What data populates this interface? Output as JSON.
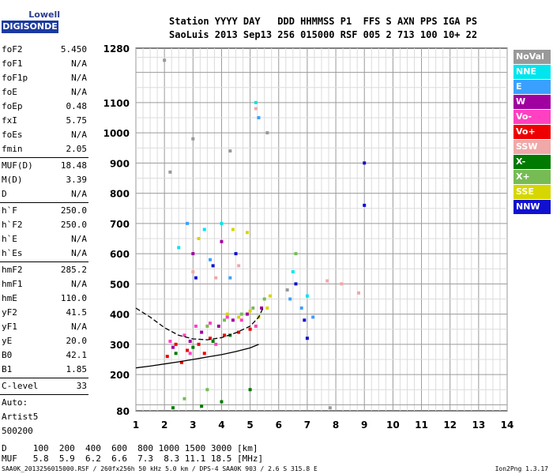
{
  "logo": {
    "top": "Lowell",
    "box": "DIGISONDE"
  },
  "header": {
    "line1": "Station YYYY DAY   DDD HHMMSS P1  FFS S AXN PPS IGA PS",
    "line2": "SaoLuis 2013 Sep13 256 015000 RSF 005 2 713 100 10+ 22"
  },
  "params": [
    {
      "k": "foF2",
      "v": "5.450"
    },
    {
      "k": "foF1",
      "v": "N/A"
    },
    {
      "k": "foF1p",
      "v": "N/A"
    },
    {
      "k": "foE",
      "v": "N/A"
    },
    {
      "k": "foEp",
      "v": "0.48"
    },
    {
      "k": "fxI",
      "v": "5.75"
    },
    {
      "k": "foEs",
      "v": "N/A"
    },
    {
      "k": "fmin",
      "v": "2.05"
    },
    {
      "sep": true
    },
    {
      "k": "MUF(D)",
      "v": "18.48"
    },
    {
      "k": "M(D)",
      "v": "3.39"
    },
    {
      "k": "D",
      "v": "N/A"
    },
    {
      "sep": true
    },
    {
      "k": "h`F",
      "v": "250.0"
    },
    {
      "k": "h`F2",
      "v": "250.0"
    },
    {
      "k": "h`E",
      "v": "N/A"
    },
    {
      "k": "h`Es",
      "v": "N/A"
    },
    {
      "sep": true
    },
    {
      "k": "hmF2",
      "v": "285.2"
    },
    {
      "k": "hmF1",
      "v": "N/A"
    },
    {
      "k": "hmE",
      "v": "110.0"
    },
    {
      "k": "yF2",
      "v": "41.5"
    },
    {
      "k": "yF1",
      "v": "N/A"
    },
    {
      "k": "yE",
      "v": "20.0"
    },
    {
      "k": "B0",
      "v": "42.1"
    },
    {
      "k": "B1",
      "v": "1.85"
    },
    {
      "sep": true
    },
    {
      "k": "C-level",
      "v": "33"
    },
    {
      "sep": true
    },
    {
      "k": "Auto:",
      "v": ""
    },
    {
      "k": "Artist5",
      "v": ""
    },
    {
      "k": "500200",
      "v": ""
    }
  ],
  "legend": [
    {
      "label": "NoVal",
      "color": "#999999"
    },
    {
      "label": "NNE",
      "color": "#00e5ee"
    },
    {
      "label": "E",
      "color": "#3aa0ff"
    },
    {
      "label": "W",
      "color": "#a000a0"
    },
    {
      "label": "Vo-",
      "color": "#ff40c0"
    },
    {
      "label": "Vo+",
      "color": "#ee0000"
    },
    {
      "label": "SSW",
      "color": "#f0a8a8"
    },
    {
      "label": "X-",
      "color": "#007a00"
    },
    {
      "label": "X+",
      "color": "#77bb55"
    },
    {
      "label": "SSE",
      "color": "#d6d600"
    },
    {
      "label": "NNW",
      "color": "#1010d0"
    }
  ],
  "chart_data": {
    "type": "scatter",
    "xticks": [
      "1",
      "2",
      "3",
      "4",
      "5",
      "6",
      "7",
      "8",
      "9",
      "10",
      "11",
      "12",
      "13",
      "14"
    ],
    "yticks": [
      "80",
      "200",
      "300",
      "400",
      "500",
      "600",
      "700",
      "800",
      "900",
      "1000",
      "1100",
      "1280"
    ],
    "xlim": [
      1,
      14
    ],
    "ylim": [
      80,
      1280
    ],
    "grid": true,
    "series": [
      {
        "color": "#ee0000",
        "points": [
          [
            2.1,
            260
          ],
          [
            2.4,
            300
          ],
          [
            2.8,
            280
          ],
          [
            3.2,
            300
          ],
          [
            3.6,
            320
          ],
          [
            4.1,
            330
          ],
          [
            4.6,
            340
          ],
          [
            5.0,
            350
          ],
          [
            2.6,
            240
          ],
          [
            3.4,
            270
          ]
        ]
      },
      {
        "color": "#ff40c0",
        "points": [
          [
            2.2,
            310
          ],
          [
            2.7,
            330
          ],
          [
            3.1,
            360
          ],
          [
            3.6,
            370
          ],
          [
            4.2,
            390
          ],
          [
            4.7,
            380
          ],
          [
            5.2,
            360
          ],
          [
            2.9,
            270
          ],
          [
            3.8,
            300
          ]
        ]
      },
      {
        "color": "#a000a0",
        "points": [
          [
            2.3,
            290
          ],
          [
            2.9,
            310
          ],
          [
            3.3,
            340
          ],
          [
            3.9,
            360
          ],
          [
            4.4,
            380
          ],
          [
            4.9,
            400
          ],
          [
            5.4,
            420
          ],
          [
            3.0,
            600
          ],
          [
            4.0,
            640
          ]
        ]
      },
      {
        "color": "#d6d600",
        "points": [
          [
            4.2,
            400
          ],
          [
            4.6,
            390
          ],
          [
            5.0,
            410
          ],
          [
            5.3,
            390
          ],
          [
            5.6,
            420
          ],
          [
            5.7,
            460
          ],
          [
            4.4,
            680
          ],
          [
            4.9,
            670
          ],
          [
            3.2,
            650
          ]
        ]
      },
      {
        "color": "#77bb55",
        "points": [
          [
            3.5,
            360
          ],
          [
            4.1,
            380
          ],
          [
            4.7,
            400
          ],
          [
            5.1,
            420
          ],
          [
            5.5,
            450
          ],
          [
            2.7,
            120
          ],
          [
            3.5,
            150
          ],
          [
            6.6,
            600
          ]
        ]
      },
      {
        "color": "#007a00",
        "points": [
          [
            2.4,
            270
          ],
          [
            3.0,
            290
          ],
          [
            3.7,
            310
          ],
          [
            4.3,
            330
          ],
          [
            2.3,
            90
          ],
          [
            3.3,
            95
          ],
          [
            4.0,
            110
          ],
          [
            5.0,
            150
          ]
        ]
      },
      {
        "color": "#1010d0",
        "points": [
          [
            3.1,
            520
          ],
          [
            3.7,
            560
          ],
          [
            4.5,
            600
          ],
          [
            6.6,
            500
          ],
          [
            6.9,
            380
          ],
          [
            7.0,
            320
          ],
          [
            9.0,
            900
          ],
          [
            9.0,
            760
          ]
        ]
      },
      {
        "color": "#3aa0ff",
        "points": [
          [
            2.8,
            700
          ],
          [
            3.6,
            580
          ],
          [
            4.3,
            520
          ],
          [
            5.3,
            1050
          ],
          [
            6.4,
            450
          ],
          [
            6.8,
            420
          ],
          [
            7.2,
            390
          ]
        ]
      },
      {
        "color": "#00e5ee",
        "points": [
          [
            2.5,
            620
          ],
          [
            3.4,
            680
          ],
          [
            4.0,
            700
          ],
          [
            5.2,
            1100
          ],
          [
            6.5,
            540
          ],
          [
            7.0,
            460
          ]
        ]
      },
      {
        "color": "#f0a8a8",
        "points": [
          [
            3.0,
            540
          ],
          [
            3.8,
            520
          ],
          [
            4.6,
            560
          ],
          [
            5.2,
            1080
          ],
          [
            8.2,
            500
          ],
          [
            8.8,
            470
          ],
          [
            7.7,
            510
          ]
        ]
      },
      {
        "color": "#999999",
        "points": [
          [
            2.0,
            1240
          ],
          [
            2.2,
            870
          ],
          [
            3.0,
            980
          ],
          [
            4.3,
            940
          ],
          [
            5.6,
            1000
          ],
          [
            6.3,
            480
          ],
          [
            7.8,
            90
          ]
        ]
      }
    ],
    "traces": [
      {
        "name": "curve-upper",
        "color": "#000000",
        "points": [
          [
            1.0,
            420
          ],
          [
            1.5,
            390
          ],
          [
            2.0,
            355
          ],
          [
            2.5,
            330
          ],
          [
            3.0,
            318
          ],
          [
            3.5,
            315
          ],
          [
            4.0,
            322
          ],
          [
            4.5,
            338
          ],
          [
            5.0,
            360
          ],
          [
            5.3,
            390
          ],
          [
            5.45,
            420
          ]
        ]
      },
      {
        "name": "curve-lower",
        "color": "#000000",
        "points": [
          [
            1.0,
            222
          ],
          [
            1.5,
            228
          ],
          [
            2.0,
            235
          ],
          [
            2.5,
            242
          ],
          [
            3.0,
            250
          ],
          [
            3.5,
            258
          ],
          [
            4.0,
            266
          ],
          [
            4.5,
            276
          ],
          [
            5.0,
            288
          ],
          [
            5.3,
            300
          ]
        ]
      }
    ]
  },
  "dmuf": {
    "d_line": "D     100  200  400  600  800 1000 1500 3000 [km]",
    "muf_line": "MUF   5.8  5.9  6.2  6.6  7.3  8.3 11.1 18.5 [MHz]"
  },
  "footer": {
    "left": "SAA0K_2013256015000.RSF / 260fx256h 50 kHz 5.0 km / DPS-4 SAA0K 903 / 2.6 S 315.8 E",
    "right": "Ion2Png 1.3.17"
  }
}
